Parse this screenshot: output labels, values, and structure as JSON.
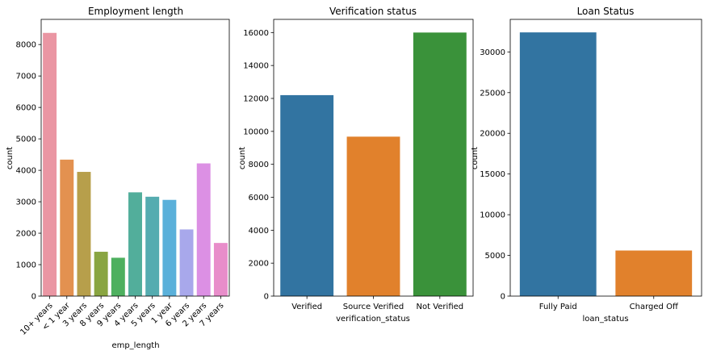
{
  "chart_data": [
    {
      "type": "bar",
      "title": "Employment length",
      "xlabel": "emp_length",
      "ylabel": "count",
      "categories": [
        "10+ years",
        "< 1 year",
        "3 years",
        "8 years",
        "9 years",
        "4 years",
        "5 years",
        "1 year",
        "6 years",
        "2 years",
        "7 years"
      ],
      "values": [
        8370,
        4340,
        3950,
        1410,
        1220,
        3300,
        3160,
        3060,
        2120,
        4220,
        1690
      ],
      "colors": [
        "#ea96a3",
        "#e39150",
        "#b79f4b",
        "#89a541",
        "#4eb05f",
        "#52ae9b",
        "#55acb0",
        "#5ab0da",
        "#a8a8eb",
        "#dc90e4",
        "#e88dca"
      ],
      "ylim": [
        0,
        8800
      ],
      "yticks": [
        0,
        1000,
        2000,
        3000,
        4000,
        5000,
        6000,
        7000,
        8000
      ],
      "grid": false
    },
    {
      "type": "bar",
      "title": "Verification status",
      "xlabel": "verification_status",
      "ylabel": "count",
      "categories": [
        "Verified",
        "Source Verified",
        "Not Verified"
      ],
      "values": [
        12200,
        9680,
        16000
      ],
      "colors": [
        "#3274a1",
        "#e1812c",
        "#3a923a"
      ],
      "ylim": [
        0,
        16800
      ],
      "yticks": [
        0,
        2000,
        4000,
        6000,
        8000,
        10000,
        12000,
        14000,
        16000
      ],
      "grid": false
    },
    {
      "type": "bar",
      "title": "Loan Status",
      "xlabel": "loan_status",
      "ylabel": "count",
      "categories": [
        "Fully Paid",
        "Charged Off"
      ],
      "values": [
        32400,
        5600
      ],
      "colors": [
        "#3274a1",
        "#e1812c"
      ],
      "ylim": [
        0,
        34000
      ],
      "yticks": [
        0,
        5000,
        10000,
        15000,
        20000,
        25000,
        30000
      ],
      "grid": false
    }
  ]
}
